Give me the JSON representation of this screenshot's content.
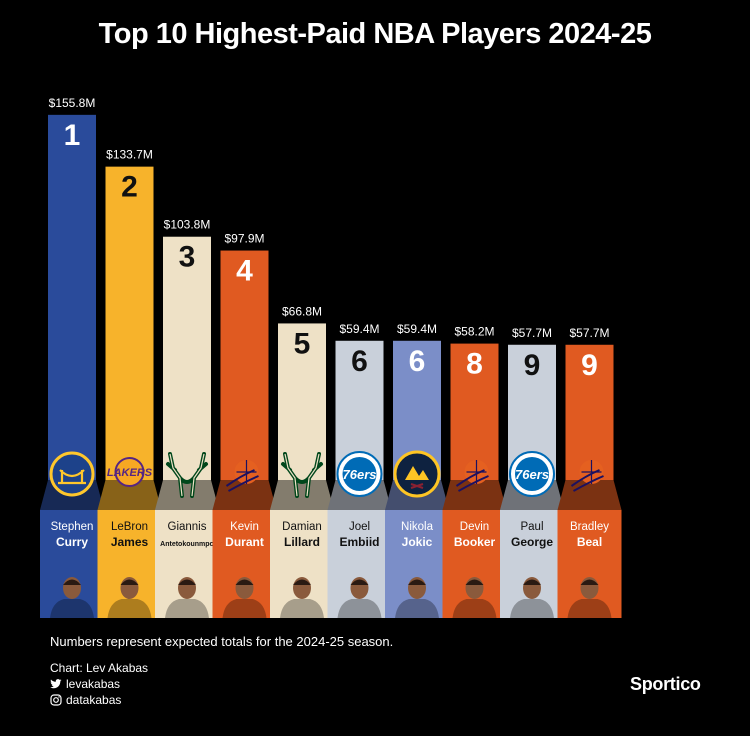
{
  "title": "Top 10 Highest-Paid NBA Players 2024-25",
  "note": "Numbers represent expected totals for the 2024-25 season.",
  "credit": {
    "chart": "Chart: Lev Akabas",
    "twitter": "levakabas",
    "instagram": "datakabas"
  },
  "brand": "Sportico",
  "colors": {
    "background": "#000000",
    "warriors": "#2a4b9b",
    "lakers": "#f7b32b",
    "bucks": "#eee1c6",
    "suns": "#e05a21",
    "sixers": "#c9d0da",
    "nuggets": "#7b8ec8"
  },
  "chart_data": {
    "type": "bar",
    "title": "Top 10 Highest-Paid NBA Players 2024-25",
    "categories": [
      "Stephen Curry",
      "LeBron James",
      "Giannis Antetokounmpo",
      "Kevin Durant",
      "Damian Lillard",
      "Joel Embiid",
      "Nikola Jokic",
      "Devin Booker",
      "Paul George",
      "Bradley Beal"
    ],
    "values": [
      155.8,
      133.7,
      103.8,
      97.9,
      66.8,
      59.4,
      59.4,
      58.2,
      57.7,
      57.7
    ],
    "value_labels": [
      "$155.8M",
      "$133.7M",
      "$103.8M",
      "$97.9M",
      "$66.8M",
      "$59.4M",
      "$59.4M",
      "$58.2M",
      "$57.7M",
      "$57.7M"
    ],
    "ranks": [
      "1",
      "2",
      "3",
      "4",
      "5",
      "6",
      "6",
      "8",
      "9",
      "9"
    ],
    "ylim": [
      0,
      160
    ],
    "players": [
      {
        "first": "Stephen",
        "last": "Curry",
        "team": "warriors",
        "team_icon": "warriors-logo-icon",
        "color": "#2a4b9b"
      },
      {
        "first": "LeBron",
        "last": "James",
        "team": "lakers",
        "team_icon": "lakers-logo-icon",
        "color": "#f7b32b"
      },
      {
        "first": "Giannis",
        "last": "Antetokounmpo",
        "team": "bucks",
        "team_icon": "bucks-logo-icon",
        "color": "#eee1c6"
      },
      {
        "first": "Kevin",
        "last": "Durant",
        "team": "suns",
        "team_icon": "suns-logo-icon",
        "color": "#e05a21"
      },
      {
        "first": "Damian",
        "last": "Lillard",
        "team": "bucks",
        "team_icon": "bucks-logo-icon",
        "color": "#eee1c6"
      },
      {
        "first": "Joel",
        "last": "Embiid",
        "team": "sixers",
        "team_icon": "sixers-logo-icon",
        "color": "#c9d0da"
      },
      {
        "first": "Nikola",
        "last": "Jokic",
        "team": "nuggets",
        "team_icon": "nuggets-logo-icon",
        "color": "#7b8ec8"
      },
      {
        "first": "Devin",
        "last": "Booker",
        "team": "suns",
        "team_icon": "suns-logo-icon",
        "color": "#e05a21"
      },
      {
        "first": "Paul",
        "last": "George",
        "team": "sixers",
        "team_icon": "sixers-logo-icon",
        "color": "#c9d0da"
      },
      {
        "first": "Bradley",
        "last": "Beal",
        "team": "suns",
        "team_icon": "suns-logo-icon",
        "color": "#e05a21"
      }
    ]
  }
}
